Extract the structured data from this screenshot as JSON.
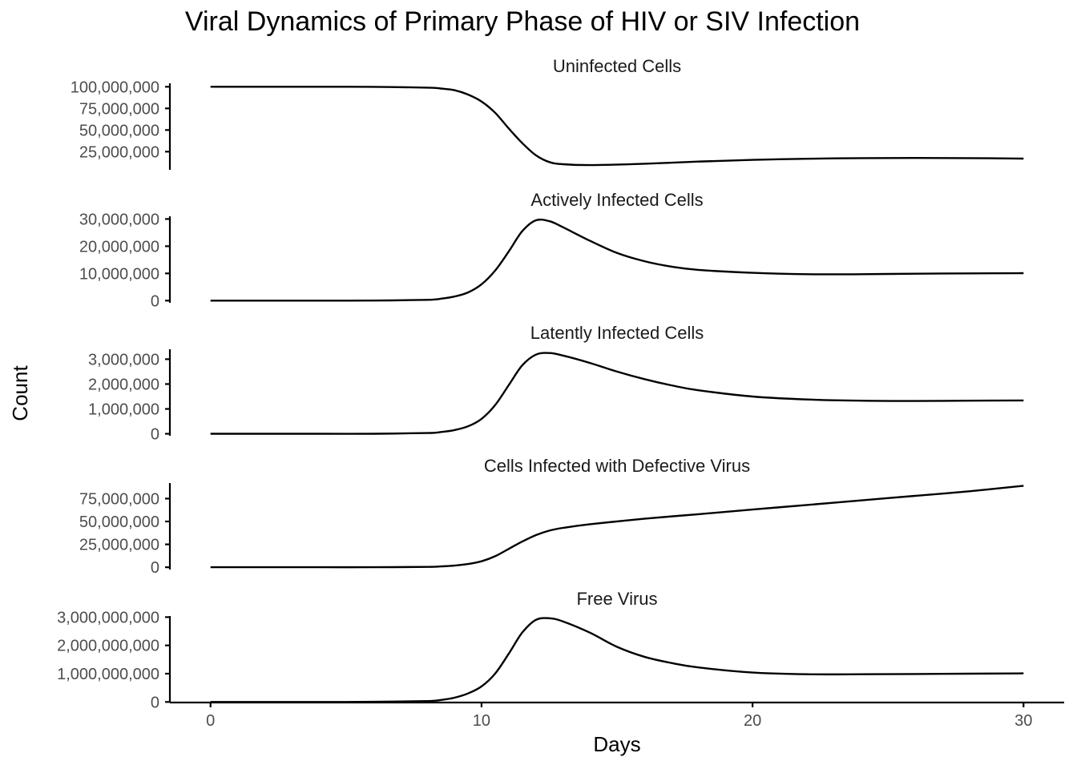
{
  "chart_data": {
    "type": "line",
    "title": "Viral Dynamics of Primary Phase of HIV or SIV Infection",
    "xlabel": "Days",
    "ylabel": "Count",
    "x_ticks": [
      0,
      10,
      20,
      30
    ],
    "xlim": [
      -1.5,
      31.5
    ],
    "grid": false,
    "legend": "none",
    "panels": [
      {
        "name": "Uninfected Cells",
        "ylim": [
          4000000,
          104000000
        ],
        "y_ticks": [
          25000000,
          50000000,
          75000000,
          100000000
        ],
        "y_tick_labels": [
          "25,000,000",
          "50,000,000",
          "75,000,000",
          "100,000,000"
        ],
        "x": [
          0,
          2,
          4,
          6,
          8,
          8.5,
          9,
          9.5,
          10,
          10.5,
          11,
          11.5,
          12,
          12.5,
          13,
          14,
          16,
          18,
          20,
          22,
          24,
          26,
          28,
          30
        ],
        "y": [
          100000000,
          100000000,
          100000000,
          99900000,
          99000000,
          98000000,
          96000000,
          91000000,
          83000000,
          70000000,
          52000000,
          35000000,
          21000000,
          13000000,
          10500000,
          9500000,
          11000000,
          13500000,
          15500000,
          16800000,
          17500000,
          17700000,
          17500000,
          17000000
        ]
      },
      {
        "name": "Actively Infected Cells",
        "ylim": [
          -800000,
          31000000
        ],
        "y_ticks": [
          0,
          10000000,
          20000000,
          30000000
        ],
        "y_tick_labels": [
          "0",
          "10,000,000",
          "20,000,000",
          "30,000,000"
        ],
        "x": [
          0,
          2,
          4,
          6,
          8,
          8.5,
          9,
          9.5,
          10,
          10.5,
          11,
          11.5,
          12,
          12.5,
          13,
          14,
          15,
          16,
          17,
          18,
          20,
          22,
          24,
          26,
          28,
          30
        ],
        "y": [
          0,
          0,
          0,
          10000,
          300000,
          700000,
          1500000,
          3000000,
          6000000,
          11000000,
          18000000,
          25500000,
          29500000,
          29200000,
          27000000,
          22000000,
          17500000,
          14500000,
          12500000,
          11300000,
          10200000,
          9700000,
          9700000,
          9900000,
          10000000,
          10100000
        ]
      },
      {
        "name": "Latently Infected Cells",
        "ylim": [
          -80000,
          3400000
        ],
        "y_ticks": [
          0,
          1000000,
          2000000,
          3000000
        ],
        "y_tick_labels": [
          "0",
          "1,000,000",
          "2,000,000",
          "3,000,000"
        ],
        "x": [
          0,
          2,
          4,
          6,
          8,
          8.5,
          9,
          9.5,
          10,
          10.5,
          11,
          11.5,
          12,
          12.5,
          13,
          14,
          15,
          16,
          17,
          18,
          20,
          22,
          24,
          26,
          28,
          30
        ],
        "y": [
          0,
          0,
          0,
          2000,
          30000,
          70000,
          150000,
          300000,
          600000,
          1150000,
          1950000,
          2750000,
          3180000,
          3250000,
          3150000,
          2850000,
          2500000,
          2200000,
          1950000,
          1750000,
          1500000,
          1380000,
          1330000,
          1320000,
          1330000,
          1340000
        ]
      },
      {
        "name": "Cells Infected with Defective Virus",
        "ylim": [
          -2500000,
          92000000
        ],
        "y_ticks": [
          0,
          25000000,
          50000000,
          75000000
        ],
        "y_tick_labels": [
          "0",
          "25,000,000",
          "50,000,000",
          "75,000,000"
        ],
        "x": [
          0,
          2,
          4,
          6,
          8,
          8.5,
          9,
          9.5,
          10,
          10.5,
          11,
          11.5,
          12,
          12.5,
          13,
          14,
          16,
          18,
          20,
          22,
          24,
          26,
          28,
          30
        ],
        "y": [
          0,
          0,
          0,
          20000,
          400000,
          900000,
          1800000,
          3500000,
          6500000,
          12000000,
          20000000,
          28000000,
          35000000,
          40000000,
          43000000,
          47000000,
          53000000,
          58000000,
          63000000,
          68000000,
          73000000,
          78000000,
          83000000,
          89000000
        ]
      },
      {
        "name": "Free Virus",
        "ylim": [
          -20000000,
          3040000000
        ],
        "y_ticks": [
          0,
          1000000000,
          2000000000,
          3000000000
        ],
        "y_tick_labels": [
          "0",
          "1,000,000,000",
          "2,000,000,000",
          "3,000,000,000"
        ],
        "x": [
          0,
          2,
          4,
          6,
          8,
          8.5,
          9,
          9.5,
          10,
          10.5,
          11,
          11.5,
          12,
          12.5,
          13,
          14,
          15,
          16,
          17,
          18,
          20,
          22,
          24,
          26,
          28,
          30
        ],
        "y": [
          0,
          0,
          0,
          5000000,
          30000000,
          70000000,
          150000000,
          300000000,
          550000000,
          1000000000,
          1700000000,
          2450000000,
          2900000000,
          2960000000,
          2850000000,
          2450000000,
          1950000000,
          1600000000,
          1380000000,
          1220000000,
          1040000000,
          980000000,
          980000000,
          990000000,
          1000000000,
          1010000000
        ]
      }
    ]
  }
}
